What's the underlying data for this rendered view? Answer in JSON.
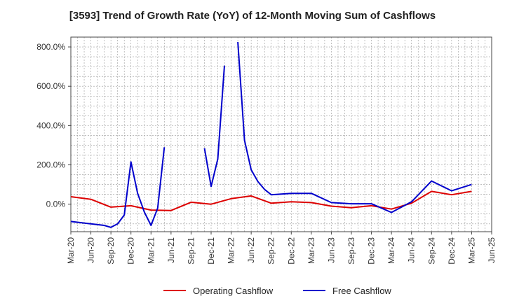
{
  "chart_data": {
    "type": "line",
    "title": "[3593]  Trend of Growth Rate (YoY) of 12-Month Moving Sum of Cashflows",
    "xlabel": "",
    "ylabel": "",
    "x_tick_labels": [
      "Mar-20",
      "Jun-20",
      "Sep-20",
      "Dec-20",
      "Mar-21",
      "Jun-21",
      "Sep-21",
      "Dec-21",
      "Mar-22",
      "Jun-22",
      "Sep-22",
      "Dec-22",
      "Mar-23",
      "Jun-23",
      "Sep-23",
      "Dec-23",
      "Mar-24",
      "Jun-24",
      "Sep-24",
      "Dec-24",
      "Mar-25",
      "Jun-25"
    ],
    "y_ticks": [
      0,
      200,
      400,
      600,
      800
    ],
    "y_tick_labels": [
      "0.0%",
      "200.0%",
      "400.0%",
      "600.0%",
      "800.0%"
    ],
    "ylim": [
      -140,
      850
    ],
    "x_range_months": [
      0,
      63
    ],
    "grid": true,
    "legend_position": "bottom-center",
    "series": [
      {
        "name": "Operating Cashflow",
        "color": "#dd0000",
        "points": [
          [
            0,
            38
          ],
          [
            3,
            25
          ],
          [
            6,
            -15
          ],
          [
            9,
            -8
          ],
          [
            12,
            -30
          ],
          [
            15,
            -32
          ],
          [
            18,
            10
          ],
          [
            21,
            0
          ],
          [
            24,
            28
          ],
          [
            27,
            42
          ],
          [
            30,
            5
          ],
          [
            33,
            12
          ],
          [
            36,
            8
          ],
          [
            39,
            -10
          ],
          [
            42,
            -18
          ],
          [
            45,
            -8
          ],
          [
            48,
            -25
          ],
          [
            51,
            5
          ],
          [
            54,
            65
          ],
          [
            57,
            48
          ],
          [
            60,
            65
          ]
        ]
      },
      {
        "name": "Free Cashflow",
        "color": "#0000cc",
        "points": [
          [
            0,
            -88
          ],
          [
            3,
            -100
          ],
          [
            5,
            -108
          ],
          [
            6,
            -118
          ],
          [
            7,
            -100
          ],
          [
            8,
            -55
          ],
          [
            9,
            215
          ],
          [
            10,
            55
          ],
          [
            11,
            -40
          ],
          [
            12,
            -108
          ],
          [
            13,
            -20
          ],
          [
            14,
            290
          ],
          null,
          [
            20,
            285
          ],
          [
            21,
            90
          ],
          [
            22,
            230
          ],
          [
            23,
            705
          ],
          null,
          [
            25,
            825
          ],
          [
            26,
            325
          ],
          [
            27,
            175
          ],
          [
            28,
            115
          ],
          [
            29,
            75
          ],
          [
            30,
            48
          ],
          [
            33,
            55
          ],
          [
            36,
            55
          ],
          [
            39,
            8
          ],
          [
            42,
            2
          ],
          [
            45,
            2
          ],
          [
            48,
            -42
          ],
          [
            51,
            12
          ],
          [
            54,
            118
          ],
          [
            57,
            68
          ],
          [
            60,
            100
          ]
        ]
      }
    ]
  }
}
